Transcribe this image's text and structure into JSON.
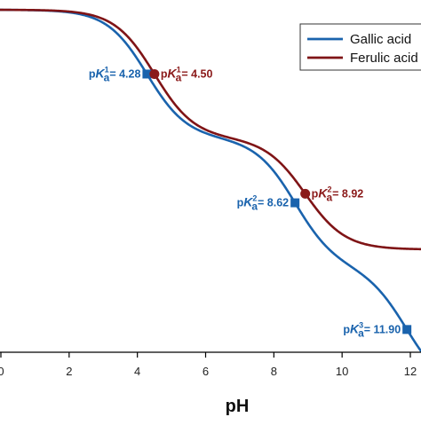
{
  "chart_data": {
    "type": "line",
    "title": "",
    "xlabel": "pH",
    "ylabel": "",
    "xlim": [
      0,
      12.5
    ],
    "ylim": [
      0,
      1
    ],
    "xticks": [
      "0",
      "2",
      "4",
      "6",
      "8",
      "10",
      "12"
    ],
    "xtick_values": [
      0,
      2,
      4,
      6,
      8,
      10,
      12
    ],
    "grid": false,
    "legend_position": "top-right",
    "series": [
      {
        "name": "Gallic acid",
        "color": "#1a63ad",
        "pka": [
          4.28,
          8.62,
          11.9
        ],
        "levels": [
          1.0,
          0.625,
          0.25,
          -0.12
        ]
      },
      {
        "name": "Ferulic acid",
        "color": "#7f1416",
        "pka": [
          4.5,
          8.92
        ],
        "levels": [
          1.0,
          0.625,
          0.3
        ]
      }
    ],
    "annotations": [
      {
        "series": 0,
        "text_p": "p",
        "text_k": "K",
        "text_a": "a",
        "sup": "1",
        "text_val": "= 4.28",
        "x": 4.28,
        "side": "left",
        "marker": "square",
        "color": "#1a63ad"
      },
      {
        "series": 1,
        "text_p": "p",
        "text_k": "K",
        "text_a": "a",
        "sup": "1",
        "text_val": "= 4.50",
        "x": 4.5,
        "side": "right",
        "marker": "circle",
        "color": "#8b1a1a"
      },
      {
        "series": 0,
        "text_p": "p",
        "text_k": "K",
        "text_a": "a",
        "sup": "2",
        "text_val": "= 8.62",
        "x": 8.62,
        "side": "left",
        "marker": "square",
        "color": "#1a63ad"
      },
      {
        "series": 1,
        "text_p": "p",
        "text_k": "K",
        "text_a": "a",
        "sup": "2",
        "text_val": "= 8.92",
        "x": 8.92,
        "side": "right",
        "marker": "circle",
        "color": "#8b1a1a"
      },
      {
        "series": 0,
        "text_p": "p",
        "text_k": "K",
        "text_a": "a",
        "sup": "3",
        "text_val": "= 11.90",
        "x": 11.9,
        "side": "left",
        "marker": "square",
        "color": "#1a63ad"
      }
    ]
  }
}
